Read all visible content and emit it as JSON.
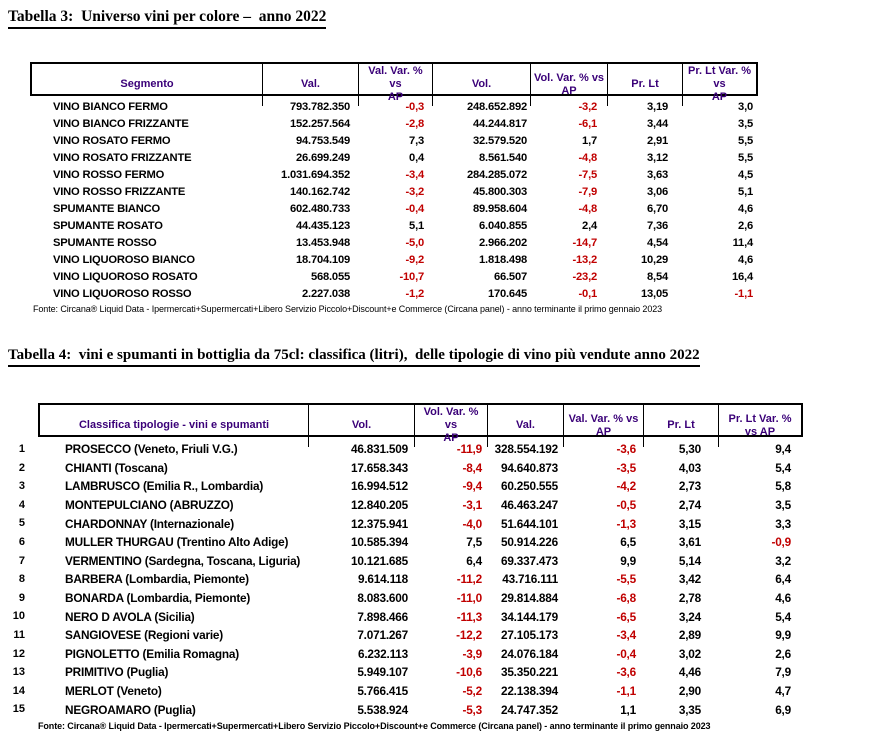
{
  "colors": {
    "header_text": "#3A0078",
    "negative_value": "#C00000",
    "text": "#000000",
    "background": "#FFFFFF"
  },
  "table3": {
    "title": "Tabella 3:  Universo vini per colore –  anno 2022",
    "headers": [
      "Segmento",
      "Val.",
      "Val. Var. % vs\nAP",
      "Vol.",
      "Vol. Var. % vs\nAP",
      "Pr. Lt",
      "Pr. Lt Var. % vs\nAP"
    ],
    "rows": [
      {
        "segmento": "VINO BIANCO FERMO",
        "val": "793.782.350",
        "val_var": "-0,3",
        "vol": "248.652.892",
        "vol_var": "-3,2",
        "pr_lt": "3,19",
        "pr_lt_var": "3,0"
      },
      {
        "segmento": "VINO BIANCO FRIZZANTE",
        "val": "152.257.564",
        "val_var": "-2,8",
        "vol": "44.244.817",
        "vol_var": "-6,1",
        "pr_lt": "3,44",
        "pr_lt_var": "3,5"
      },
      {
        "segmento": "VINO ROSATO FERMO",
        "val": "94.753.549",
        "val_var": "7,3",
        "vol": "32.579.520",
        "vol_var": "1,7",
        "pr_lt": "2,91",
        "pr_lt_var": "5,5"
      },
      {
        "segmento": "VINO ROSATO FRIZZANTE",
        "val": "26.699.249",
        "val_var": "0,4",
        "vol": "8.561.540",
        "vol_var": "-4,8",
        "pr_lt": "3,12",
        "pr_lt_var": "5,5"
      },
      {
        "segmento": "VINO ROSSO FERMO",
        "val": "1.031.694.352",
        "val_var": "-3,4",
        "vol": "284.285.072",
        "vol_var": "-7,5",
        "pr_lt": "3,63",
        "pr_lt_var": "4,5"
      },
      {
        "segmento": "VINO ROSSO FRIZZANTE",
        "val": "140.162.742",
        "val_var": "-3,2",
        "vol": "45.800.303",
        "vol_var": "-7,9",
        "pr_lt": "3,06",
        "pr_lt_var": "5,1"
      },
      {
        "segmento": "SPUMANTE BIANCO",
        "val": "602.480.733",
        "val_var": "-0,4",
        "vol": "89.958.604",
        "vol_var": "-4,8",
        "pr_lt": "6,70",
        "pr_lt_var": "4,6"
      },
      {
        "segmento": "SPUMANTE ROSATO",
        "val": "44.435.123",
        "val_var": "5,1",
        "vol": "6.040.855",
        "vol_var": "2,4",
        "pr_lt": "7,36",
        "pr_lt_var": "2,6"
      },
      {
        "segmento": "SPUMANTE ROSSO",
        "val": "13.453.948",
        "val_var": "-5,0",
        "vol": "2.966.202",
        "vol_var": "-14,7",
        "pr_lt": "4,54",
        "pr_lt_var": "11,4"
      },
      {
        "segmento": "VINO LIQUOROSO BIANCO",
        "val": "18.704.109",
        "val_var": "-9,2",
        "vol": "1.818.498",
        "vol_var": "-13,2",
        "pr_lt": "10,29",
        "pr_lt_var": "4,6"
      },
      {
        "segmento": "VINO LIQUOROSO ROSATO",
        "val": "568.055",
        "val_var": "-10,7",
        "vol": "66.507",
        "vol_var": "-23,2",
        "pr_lt": "8,54",
        "pr_lt_var": "16,4"
      },
      {
        "segmento": "VINO LIQUOROSO ROSSO",
        "val": "2.227.038",
        "val_var": "-1,2",
        "vol": "170.645",
        "vol_var": "-0,1",
        "pr_lt": "13,05",
        "pr_lt_var": "-1,1"
      }
    ],
    "fonte": "Fonte: Circana® Liquid Data - Ipermercati+Supermercati+Libero Servizio Piccolo+Discount+e Commerce (Circana panel) - anno terminante il primo gennaio 2023"
  },
  "table4": {
    "title": "Tabella 4:  vini e spumanti in bottiglia da 75cl: classifica (litri),  delle tipologie di vino più vendute anno 2022",
    "headers": [
      "Classifica tipologie - vini e spumanti",
      "Vol.",
      "Vol. Var. % vs\nAP",
      "Val.",
      "Val. Var. % vs\nAP",
      "Pr. Lt",
      "Pr. Lt Var. %\nvs AP"
    ],
    "rows": [
      {
        "rank": "1",
        "tipologia": "PROSECCO (Veneto, Friuli V.G.)",
        "vol": "46.831.509",
        "vol_var": "-11,9",
        "val": "328.554.192",
        "val_var": "-3,6",
        "pr_lt": "5,30",
        "pr_lt_var": "9,4"
      },
      {
        "rank": "2",
        "tipologia": "CHIANTI (Toscana)",
        "vol": "17.658.343",
        "vol_var": "-8,4",
        "val": "94.640.873",
        "val_var": "-3,5",
        "pr_lt": "4,03",
        "pr_lt_var": "5,4"
      },
      {
        "rank": "3",
        "tipologia": "LAMBRUSCO (Emilia R., Lombardia)",
        "vol": "16.994.512",
        "vol_var": "-9,4",
        "val": "60.250.555",
        "val_var": "-4,2",
        "pr_lt": "2,73",
        "pr_lt_var": "5,8"
      },
      {
        "rank": "4",
        "tipologia": "MONTEPULCIANO (ABRUZZO)",
        "vol": "12.840.205",
        "vol_var": "-3,1",
        "val": "46.463.247",
        "val_var": "-0,5",
        "pr_lt": "2,74",
        "pr_lt_var": "3,5"
      },
      {
        "rank": "5",
        "tipologia": "CHARDONNAY (Internazionale)",
        "vol": "12.375.941",
        "vol_var": "-4,0",
        "val": "51.644.101",
        "val_var": "-1,3",
        "pr_lt": "3,15",
        "pr_lt_var": "3,3"
      },
      {
        "rank": "6",
        "tipologia": "MULLER THURGAU (Trentino Alto Adige)",
        "vol": "10.585.394",
        "vol_var": "7,5",
        "val": "50.914.226",
        "val_var": "6,5",
        "pr_lt": "3,61",
        "pr_lt_var": "-0,9"
      },
      {
        "rank": "7",
        "tipologia": "VERMENTINO (Sardegna, Toscana, Liguria)",
        "vol": "10.121.685",
        "vol_var": "6,4",
        "val": "69.337.473",
        "val_var": "9,9",
        "pr_lt": "5,14",
        "pr_lt_var": "3,2"
      },
      {
        "rank": "8",
        "tipologia": "BARBERA (Lombardia, Piemonte)",
        "vol": "9.614.118",
        "vol_var": "-11,2",
        "val": "43.716.111",
        "val_var": "-5,5",
        "pr_lt": "3,42",
        "pr_lt_var": "6,4"
      },
      {
        "rank": "9",
        "tipologia": "BONARDA (Lombardia, Piemonte)",
        "vol": "8.083.600",
        "vol_var": "-11,0",
        "val": "29.814.884",
        "val_var": "-6,8",
        "pr_lt": "2,78",
        "pr_lt_var": "4,6"
      },
      {
        "rank": "10",
        "tipologia": "NERO D AVOLA (Sicilia)",
        "vol": "7.898.466",
        "vol_var": "-11,3",
        "val": "34.144.179",
        "val_var": "-6,5",
        "pr_lt": "3,24",
        "pr_lt_var": "5,4"
      },
      {
        "rank": "11",
        "tipologia": "SANGIOVESE (Regioni varie)",
        "vol": "7.071.267",
        "vol_var": "-12,2",
        "val": "27.105.173",
        "val_var": "-3,4",
        "pr_lt": "2,89",
        "pr_lt_var": "9,9"
      },
      {
        "rank": "12",
        "tipologia": "PIGNOLETTO (Emilia Romagna)",
        "vol": "6.232.113",
        "vol_var": "-3,9",
        "val": "24.076.184",
        "val_var": "-0,4",
        "pr_lt": "3,02",
        "pr_lt_var": "2,6"
      },
      {
        "rank": "13",
        "tipologia": "PRIMITIVO (Puglia)",
        "vol": "5.949.107",
        "vol_var": "-10,6",
        "val": "35.350.221",
        "val_var": "-3,6",
        "pr_lt": "4,46",
        "pr_lt_var": "7,9"
      },
      {
        "rank": "14",
        "tipologia": "MERLOT (Veneto)",
        "vol": "5.766.415",
        "vol_var": "-5,2",
        "val": "22.138.394",
        "val_var": "-1,1",
        "pr_lt": "2,90",
        "pr_lt_var": "4,7"
      },
      {
        "rank": "15",
        "tipologia": "NEGROAMARO (Puglia)",
        "vol": "5.538.924",
        "vol_var": "-5,3",
        "val": "24.747.352",
        "val_var": "1,1",
        "pr_lt": "3,35",
        "pr_lt_var": "6,9"
      }
    ],
    "fonte": "Fonte: Circana® Liquid Data - Ipermercati+Supermercati+Libero Servizio Piccolo+Discount+e Commerce (Circana panel) - anno terminante il primo gennaio 2023"
  }
}
